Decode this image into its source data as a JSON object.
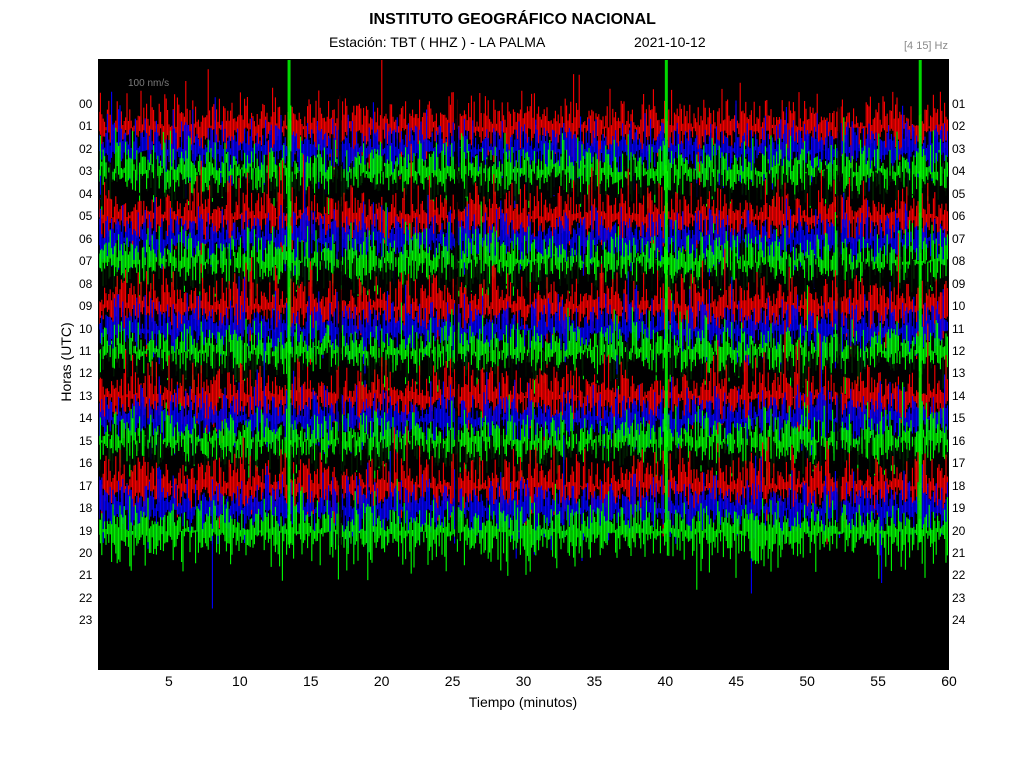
{
  "chart_data": {
    "type": "heatmap",
    "title": "INSTITUTO GEOGRÁFICO NACIONAL",
    "station_label": "Estación:  TBT ( HHZ ) - LA PALMA",
    "date": "2021-10-12",
    "frequency_band": "[4 15] Hz",
    "scale_label": "100 nm/s",
    "xlabel": "Tiempo (minutos)",
    "ylabel": "Horas (UTC)",
    "xlim": [
      0,
      60
    ],
    "x_ticks": [
      "5",
      "10",
      "15",
      "20",
      "25",
      "30",
      "35",
      "40",
      "45",
      "50",
      "55",
      "60"
    ],
    "y_ticks_left": [
      "00",
      "01",
      "02",
      "03",
      "04",
      "05",
      "06",
      "07",
      "08",
      "09",
      "10",
      "11",
      "12",
      "13",
      "14",
      "15",
      "16",
      "17",
      "18",
      "19",
      "20",
      "21",
      "22",
      "23"
    ],
    "y_ticks_right": [
      "01",
      "02",
      "03",
      "04",
      "05",
      "06",
      "07",
      "08",
      "09",
      "10",
      "11",
      "12",
      "13",
      "14",
      "15",
      "16",
      "17",
      "18",
      "19",
      "20",
      "21",
      "22",
      "23",
      "24"
    ],
    "trace_colors": [
      "#000000",
      "#ff0000",
      "#0000ff",
      "#00ff00"
    ],
    "data_end_hour": 20,
    "grid": false
  }
}
